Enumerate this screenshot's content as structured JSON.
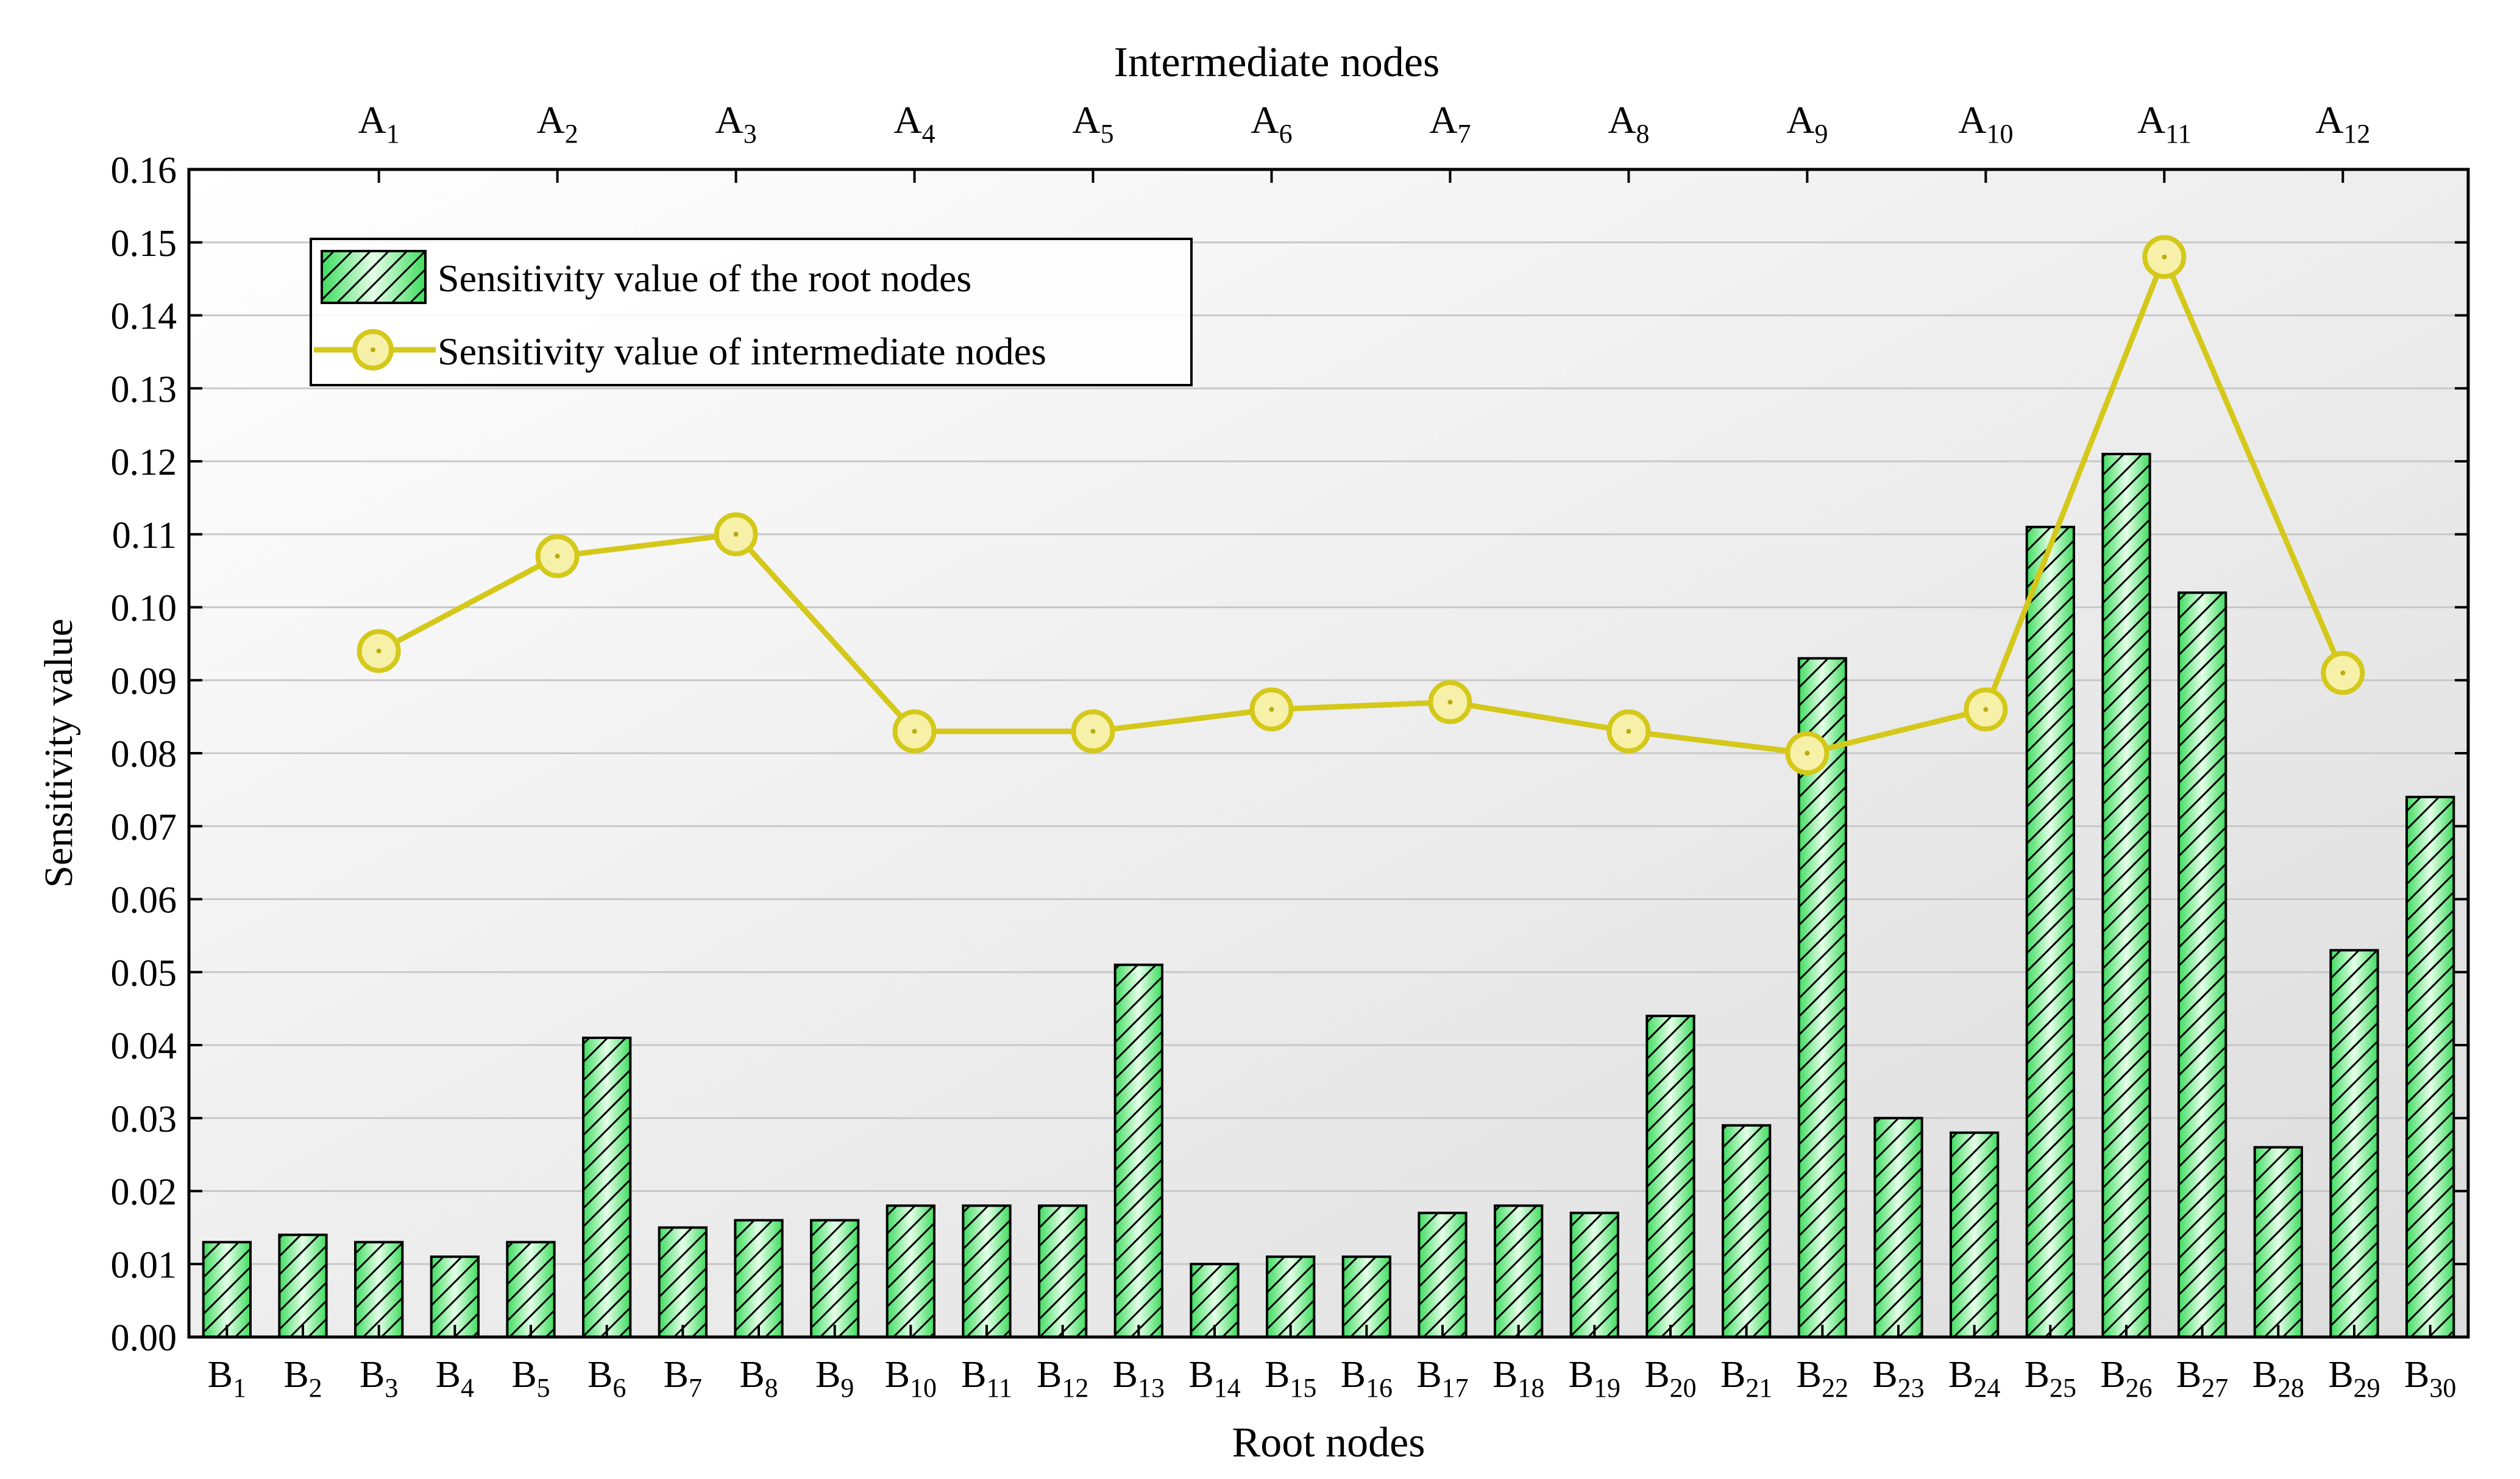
{
  "chart_data": {
    "type": "bar+line",
    "ylabel": "Sensitivity value",
    "xlabel_bottom": "Root nodes",
    "xlabel_top": "Intermediate nodes",
    "ylim": [
      0,
      0.16
    ],
    "ytick_step": 0.01,
    "yticks": [
      "0.00",
      "0.01",
      "0.02",
      "0.03",
      "0.04",
      "0.05",
      "0.06",
      "0.07",
      "0.08",
      "0.09",
      "0.10",
      "0.11",
      "0.12",
      "0.13",
      "0.14",
      "0.15",
      "0.16"
    ],
    "grid": true,
    "legend_position": "top-left",
    "bar_series": {
      "name": "Sensitivity value of the root nodes",
      "letter": "B",
      "subscripts": [
        "1",
        "2",
        "3",
        "4",
        "5",
        "6",
        "7",
        "8",
        "9",
        "10",
        "11",
        "12",
        "13",
        "14",
        "15",
        "16",
        "17",
        "18",
        "19",
        "20",
        "21",
        "22",
        "23",
        "24",
        "25",
        "26",
        "27",
        "28",
        "29",
        "30"
      ],
      "values": [
        0.013,
        0.014,
        0.013,
        0.011,
        0.013,
        0.041,
        0.015,
        0.016,
        0.016,
        0.018,
        0.018,
        0.018,
        0.051,
        0.01,
        0.011,
        0.011,
        0.017,
        0.018,
        0.017,
        0.044,
        0.029,
        0.093,
        0.03,
        0.028,
        0.111,
        0.121,
        0.102,
        0.026,
        0.053,
        0.074
      ],
      "color": "#5ee878"
    },
    "line_series": {
      "name": "Sensitivity value of intermediate nodes",
      "letter": "A",
      "subscripts": [
        "1",
        "2",
        "3",
        "4",
        "5",
        "6",
        "7",
        "8",
        "9",
        "10",
        "11",
        "12"
      ],
      "values": [
        0.094,
        0.107,
        0.11,
        0.083,
        0.083,
        0.086,
        0.087,
        0.083,
        0.08,
        0.086,
        0.148,
        0.091
      ],
      "marker_positions_on_root_axis": [
        3,
        5.35,
        7.7,
        10.05,
        12.4,
        14.75,
        17.1,
        19.45,
        21.8,
        24.15,
        26.5,
        28.85
      ],
      "color": "#d4c81a"
    }
  }
}
